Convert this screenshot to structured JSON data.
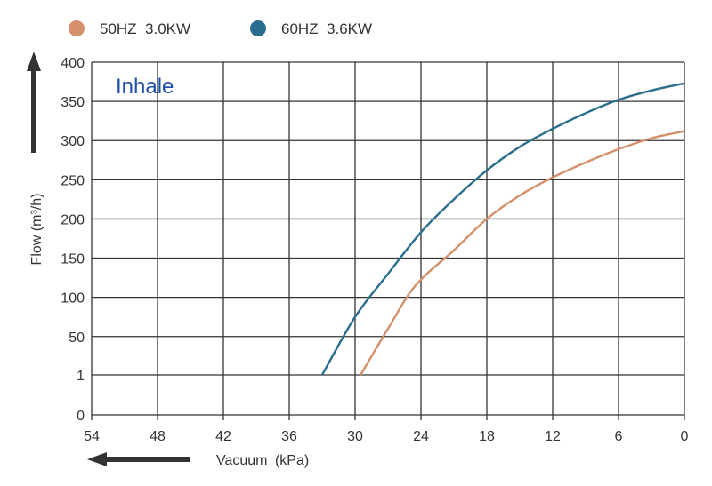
{
  "chart_data": {
    "type": "line",
    "annotation": "Inhale",
    "xlabel": "Vacuum",
    "xlabel_unit": "(kPa)",
    "ylabel": "Flow (m³/h)",
    "x_ticks": [
      54,
      48,
      42,
      36,
      30,
      24,
      18,
      12,
      6,
      0
    ],
    "y_ticks": [
      "0",
      "1",
      "50",
      "100",
      "150",
      "200",
      "250",
      "300",
      "350",
      "400"
    ],
    "x_reversed": true,
    "xlim": [
      54,
      0
    ],
    "ylim": [
      0,
      400
    ],
    "grid": true,
    "legend_position": "top-left",
    "series": [
      {
        "name": "50HZ  3.0KW",
        "color": "#d4906a",
        "points": [
          [
            29.5,
            1
          ],
          [
            27,
            60
          ],
          [
            24.5,
            115
          ],
          [
            21,
            160
          ],
          [
            18,
            200
          ],
          [
            15,
            230
          ],
          [
            12,
            253
          ],
          [
            9,
            272
          ],
          [
            6,
            289
          ],
          [
            3,
            303
          ],
          [
            0,
            312
          ]
        ]
      },
      {
        "name": "60HZ  3.6KW",
        "color": "#2a6e8e",
        "points": [
          [
            33,
            1
          ],
          [
            30,
            75
          ],
          [
            27,
            130
          ],
          [
            24,
            183
          ],
          [
            21,
            225
          ],
          [
            18,
            262
          ],
          [
            15,
            292
          ],
          [
            12,
            315
          ],
          [
            9,
            335
          ],
          [
            6,
            352
          ],
          [
            3,
            364
          ],
          [
            0,
            373
          ]
        ]
      }
    ]
  },
  "colors": {
    "grid": "#333333",
    "annotation": "#1f4fa8",
    "arrow": "#333333"
  }
}
